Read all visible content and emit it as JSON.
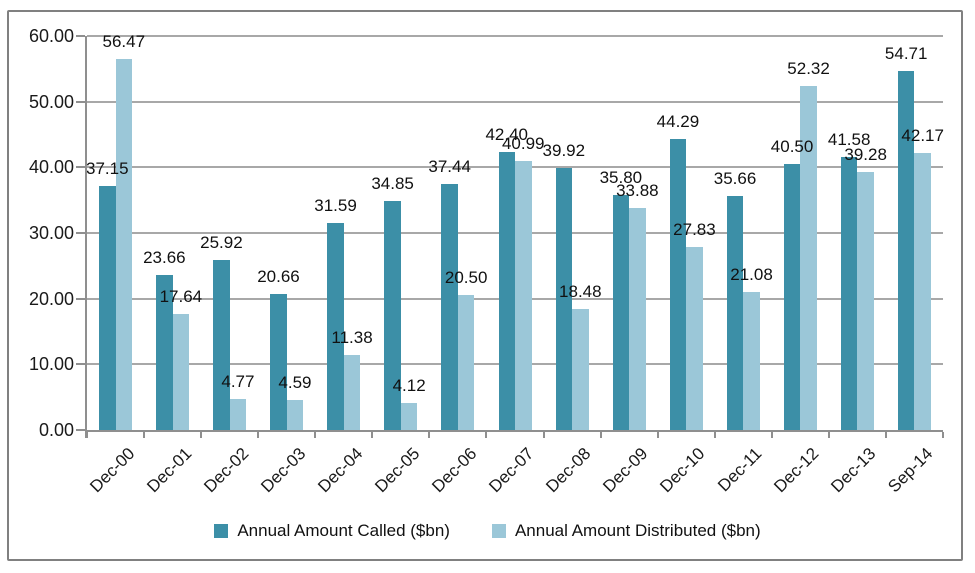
{
  "chart_data": {
    "type": "bar",
    "title": "",
    "categories": [
      "Dec-00",
      "Dec-01",
      "Dec-02",
      "Dec-03",
      "Dec-04",
      "Dec-05",
      "Dec-06",
      "Dec-07",
      "Dec-08",
      "Dec-09",
      "Dec-10",
      "Dec-11",
      "Dec-12",
      "Dec-13",
      "Sep-14"
    ],
    "series": [
      {
        "name": "Annual Amount Called ($bn)",
        "color": "#3c8fa7",
        "values": [
          37.15,
          23.66,
          25.92,
          20.66,
          31.59,
          34.85,
          37.44,
          42.4,
          39.92,
          35.8,
          44.29,
          35.66,
          40.5,
          41.58,
          54.71
        ]
      },
      {
        "name": "Annual Amount Distributed ($bn)",
        "color": "#9bc7d8",
        "values": [
          56.47,
          17.64,
          4.77,
          4.59,
          11.38,
          4.12,
          20.5,
          40.99,
          18.48,
          33.88,
          27.83,
          21.08,
          52.32,
          39.28,
          42.17
        ]
      }
    ],
    "xlabel": "",
    "ylabel": "",
    "ylim": [
      0,
      60
    ],
    "ytick_step": 10,
    "ytick_labels": [
      "0.00",
      "10.00",
      "20.00",
      "30.00",
      "40.00",
      "50.00",
      "60.00"
    ],
    "grid": true,
    "data_labels": true,
    "legend_position": "bottom"
  },
  "colors": {
    "series_called": "#3c8fa7",
    "series_distributed": "#9bc7d8",
    "gridline": "#a8a8a8",
    "axis": "#8f8f8f",
    "frame_border": "#808080",
    "label_text": "#111111",
    "background": "#ffffff"
  }
}
